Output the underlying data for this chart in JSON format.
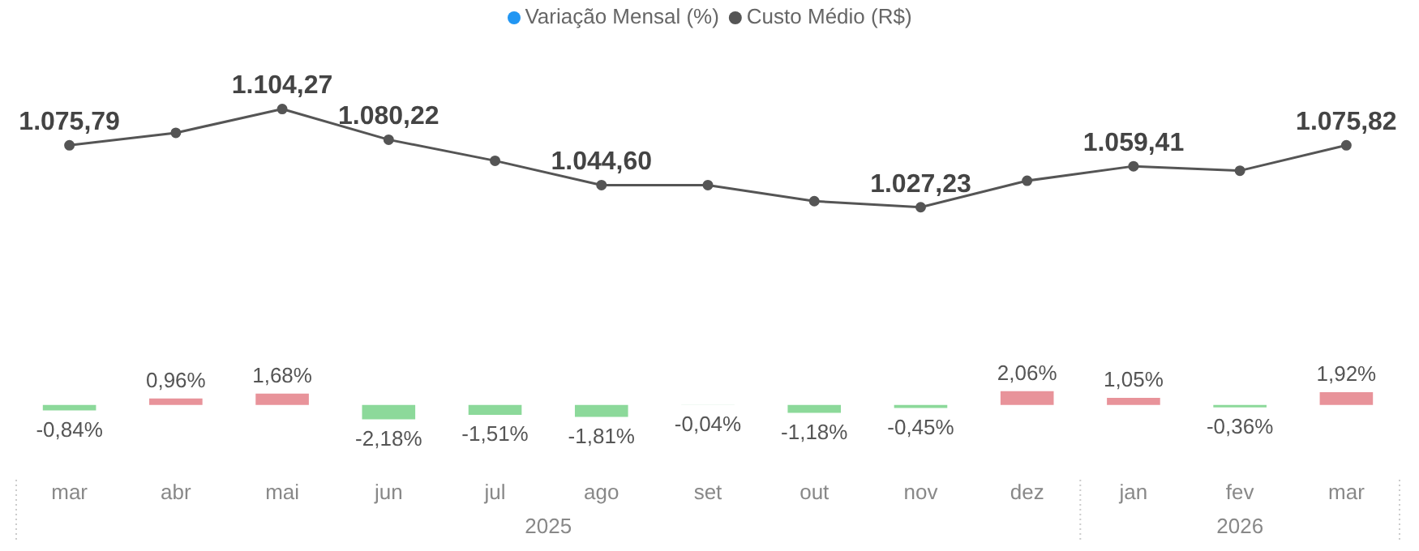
{
  "chart_data": [
    {
      "type": "line",
      "categories": [
        null,
        null,
        null,
        null,
        null,
        null,
        null,
        null,
        null,
        null,
        null,
        null,
        null
      ],
      "series": [
        {
          "name": "Custo Médio (R$)",
          "color": "#555555",
          "values": [
            1075.79,
            1085.6,
            1104.27,
            1080.22,
            1063.7,
            1044.6,
            1044.6,
            1032.0,
            1027.23,
            1048.0,
            1059.41,
            1055.9,
            1075.82
          ],
          "value_labels": [
            "1.075,79",
            null,
            "1.104,27",
            "1.080,22",
            null,
            "1.044,60",
            null,
            null,
            "1.027,23",
            null,
            "1.059,41",
            null,
            "1.075,82"
          ]
        }
      ],
      "tick_labels": false,
      "legend": "top",
      "grid": false,
      "marker": "circle"
    },
    {
      "type": "bar",
      "categories": [
        "mar",
        "abr",
        "mai",
        "jun",
        "jul",
        "ago",
        "set",
        "out",
        "nov",
        "dez",
        "jan",
        "fev",
        "mar"
      ],
      "series": [
        {
          "name": "Variação Mensal (%)",
          "color": "#2196f3",
          "colors": [
            "#8cd99a",
            "#e8939a",
            "#e8939a",
            "#8cd99a",
            "#8cd99a",
            "#8cd99a",
            "#c8ecce",
            "#8cd99a",
            "#8cd99a",
            "#e8939a",
            "#e8939a",
            "#8cd99a",
            "#e8939a"
          ],
          "values": [
            -0.84,
            0.96,
            1.68,
            -2.18,
            -1.51,
            -1.81,
            -0.04,
            -1.18,
            -0.45,
            2.06,
            1.05,
            -0.36,
            1.92
          ],
          "value_labels": [
            "-0,84%",
            "0,96%",
            "1,68%",
            "-2,18%",
            "-1,51%",
            "-1,81%",
            "-0,04%",
            "-1,18%",
            "-0,45%",
            "2,06%",
            "1,05%",
            "-0,36%",
            "1,92%"
          ]
        }
      ],
      "tick_labels": "x",
      "legend": "top",
      "grid": false,
      "annotations": [
        "2025",
        "2026"
      ]
    }
  ]
}
